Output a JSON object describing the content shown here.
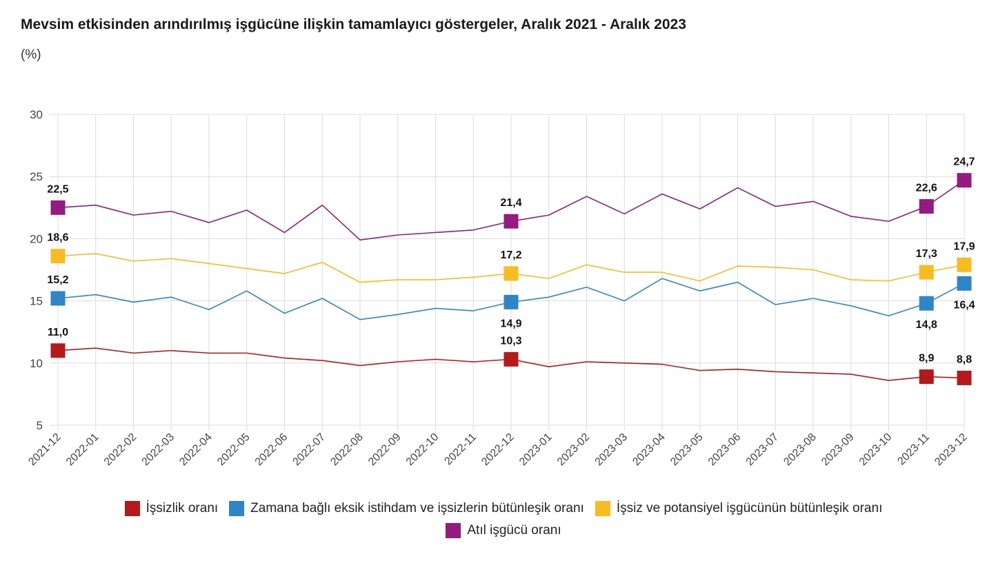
{
  "title": "Mevsim etkisinden arındırılmış işgücüne ilişkin tamamlayıcı göstergeler, Aralık 2021 - Aralık 2023",
  "unit": "(%)",
  "chart_data": {
    "type": "line",
    "title": "Mevsim etkisinden arındırılmış işgücüne ilişkin tamamlayıcı göstergeler, Aralık 2021 - Aralık 2023",
    "ylabel": "(%)",
    "ylim": [
      5,
      30
    ],
    "yticks": [
      5,
      10,
      15,
      20,
      25,
      30
    ],
    "grid": true,
    "legend_position": "bottom",
    "categories": [
      "2021-12",
      "2022-01",
      "2022-02",
      "2022-03",
      "2022-04",
      "2022-05",
      "2022-06",
      "2022-07",
      "2022-08",
      "2022-09",
      "2022-10",
      "2022-11",
      "2022-12",
      "2023-01",
      "2023-02",
      "2023-03",
      "2023-04",
      "2023-05",
      "2023-06",
      "2023-07",
      "2023-08",
      "2023-09",
      "2023-10",
      "2023-11",
      "2023-12"
    ],
    "series": [
      {
        "name": "İşsizlik oranı",
        "color": "#b5191c",
        "values": [
          11.0,
          11.2,
          10.8,
          11.0,
          10.8,
          10.8,
          10.4,
          10.2,
          9.8,
          10.1,
          10.3,
          10.1,
          10.3,
          9.7,
          10.1,
          10.0,
          9.9,
          9.4,
          9.5,
          9.3,
          9.2,
          9.1,
          8.6,
          8.9,
          8.8
        ]
      },
      {
        "name": "Zamana bağlı eksik istihdam ve işsizlerin bütünleşik oranı",
        "color": "#2e86c8",
        "values": [
          15.2,
          15.5,
          14.9,
          15.3,
          14.3,
          15.8,
          14.0,
          15.2,
          13.5,
          13.9,
          14.4,
          14.2,
          14.9,
          15.3,
          16.1,
          15.0,
          16.8,
          15.8,
          16.5,
          14.7,
          15.2,
          14.6,
          13.8,
          14.8,
          16.4
        ]
      },
      {
        "name": "İşsiz ve potansiyel işgücünün bütünleşik oranı",
        "color": "#f9bb21",
        "values": [
          18.6,
          18.8,
          18.2,
          18.4,
          18.0,
          17.6,
          17.2,
          18.1,
          16.5,
          16.7,
          16.7,
          16.9,
          17.2,
          16.8,
          17.9,
          17.3,
          17.3,
          16.6,
          17.8,
          17.7,
          17.5,
          16.7,
          16.6,
          17.3,
          17.9
        ]
      },
      {
        "name": "Atıl işgücü oranı",
        "color": "#951b81",
        "values": [
          22.5,
          22.7,
          21.9,
          22.2,
          21.3,
          22.3,
          20.5,
          22.7,
          19.9,
          20.3,
          20.5,
          20.7,
          21.4,
          21.9,
          23.4,
          22.0,
          23.6,
          22.4,
          24.1,
          22.6,
          23.0,
          21.8,
          21.4,
          22.6,
          24.7
        ]
      }
    ],
    "data_labels": [
      {
        "series": 0,
        "index": 0,
        "text": "11,0",
        "pos": "above"
      },
      {
        "series": 0,
        "index": 12,
        "text": "10,3",
        "pos": "above"
      },
      {
        "series": 0,
        "index": 23,
        "text": "8,9",
        "pos": "above"
      },
      {
        "series": 0,
        "index": 24,
        "text": "8,8",
        "pos": "above"
      },
      {
        "series": 1,
        "index": 0,
        "text": "15,2",
        "pos": "above"
      },
      {
        "series": 1,
        "index": 12,
        "text": "14,9",
        "pos": "below"
      },
      {
        "series": 1,
        "index": 23,
        "text": "14,8",
        "pos": "below"
      },
      {
        "series": 1,
        "index": 24,
        "text": "16,4",
        "pos": "below"
      },
      {
        "series": 2,
        "index": 0,
        "text": "18,6",
        "pos": "above"
      },
      {
        "series": 2,
        "index": 12,
        "text": "17,2",
        "pos": "above"
      },
      {
        "series": 2,
        "index": 23,
        "text": "17,3",
        "pos": "above"
      },
      {
        "series": 2,
        "index": 24,
        "text": "17,9",
        "pos": "above"
      },
      {
        "series": 3,
        "index": 0,
        "text": "22,5",
        "pos": "above"
      },
      {
        "series": 3,
        "index": 12,
        "text": "21,4",
        "pos": "above"
      },
      {
        "series": 3,
        "index": 23,
        "text": "22,6",
        "pos": "above"
      },
      {
        "series": 3,
        "index": 24,
        "text": "24,7",
        "pos": "above"
      }
    ]
  }
}
